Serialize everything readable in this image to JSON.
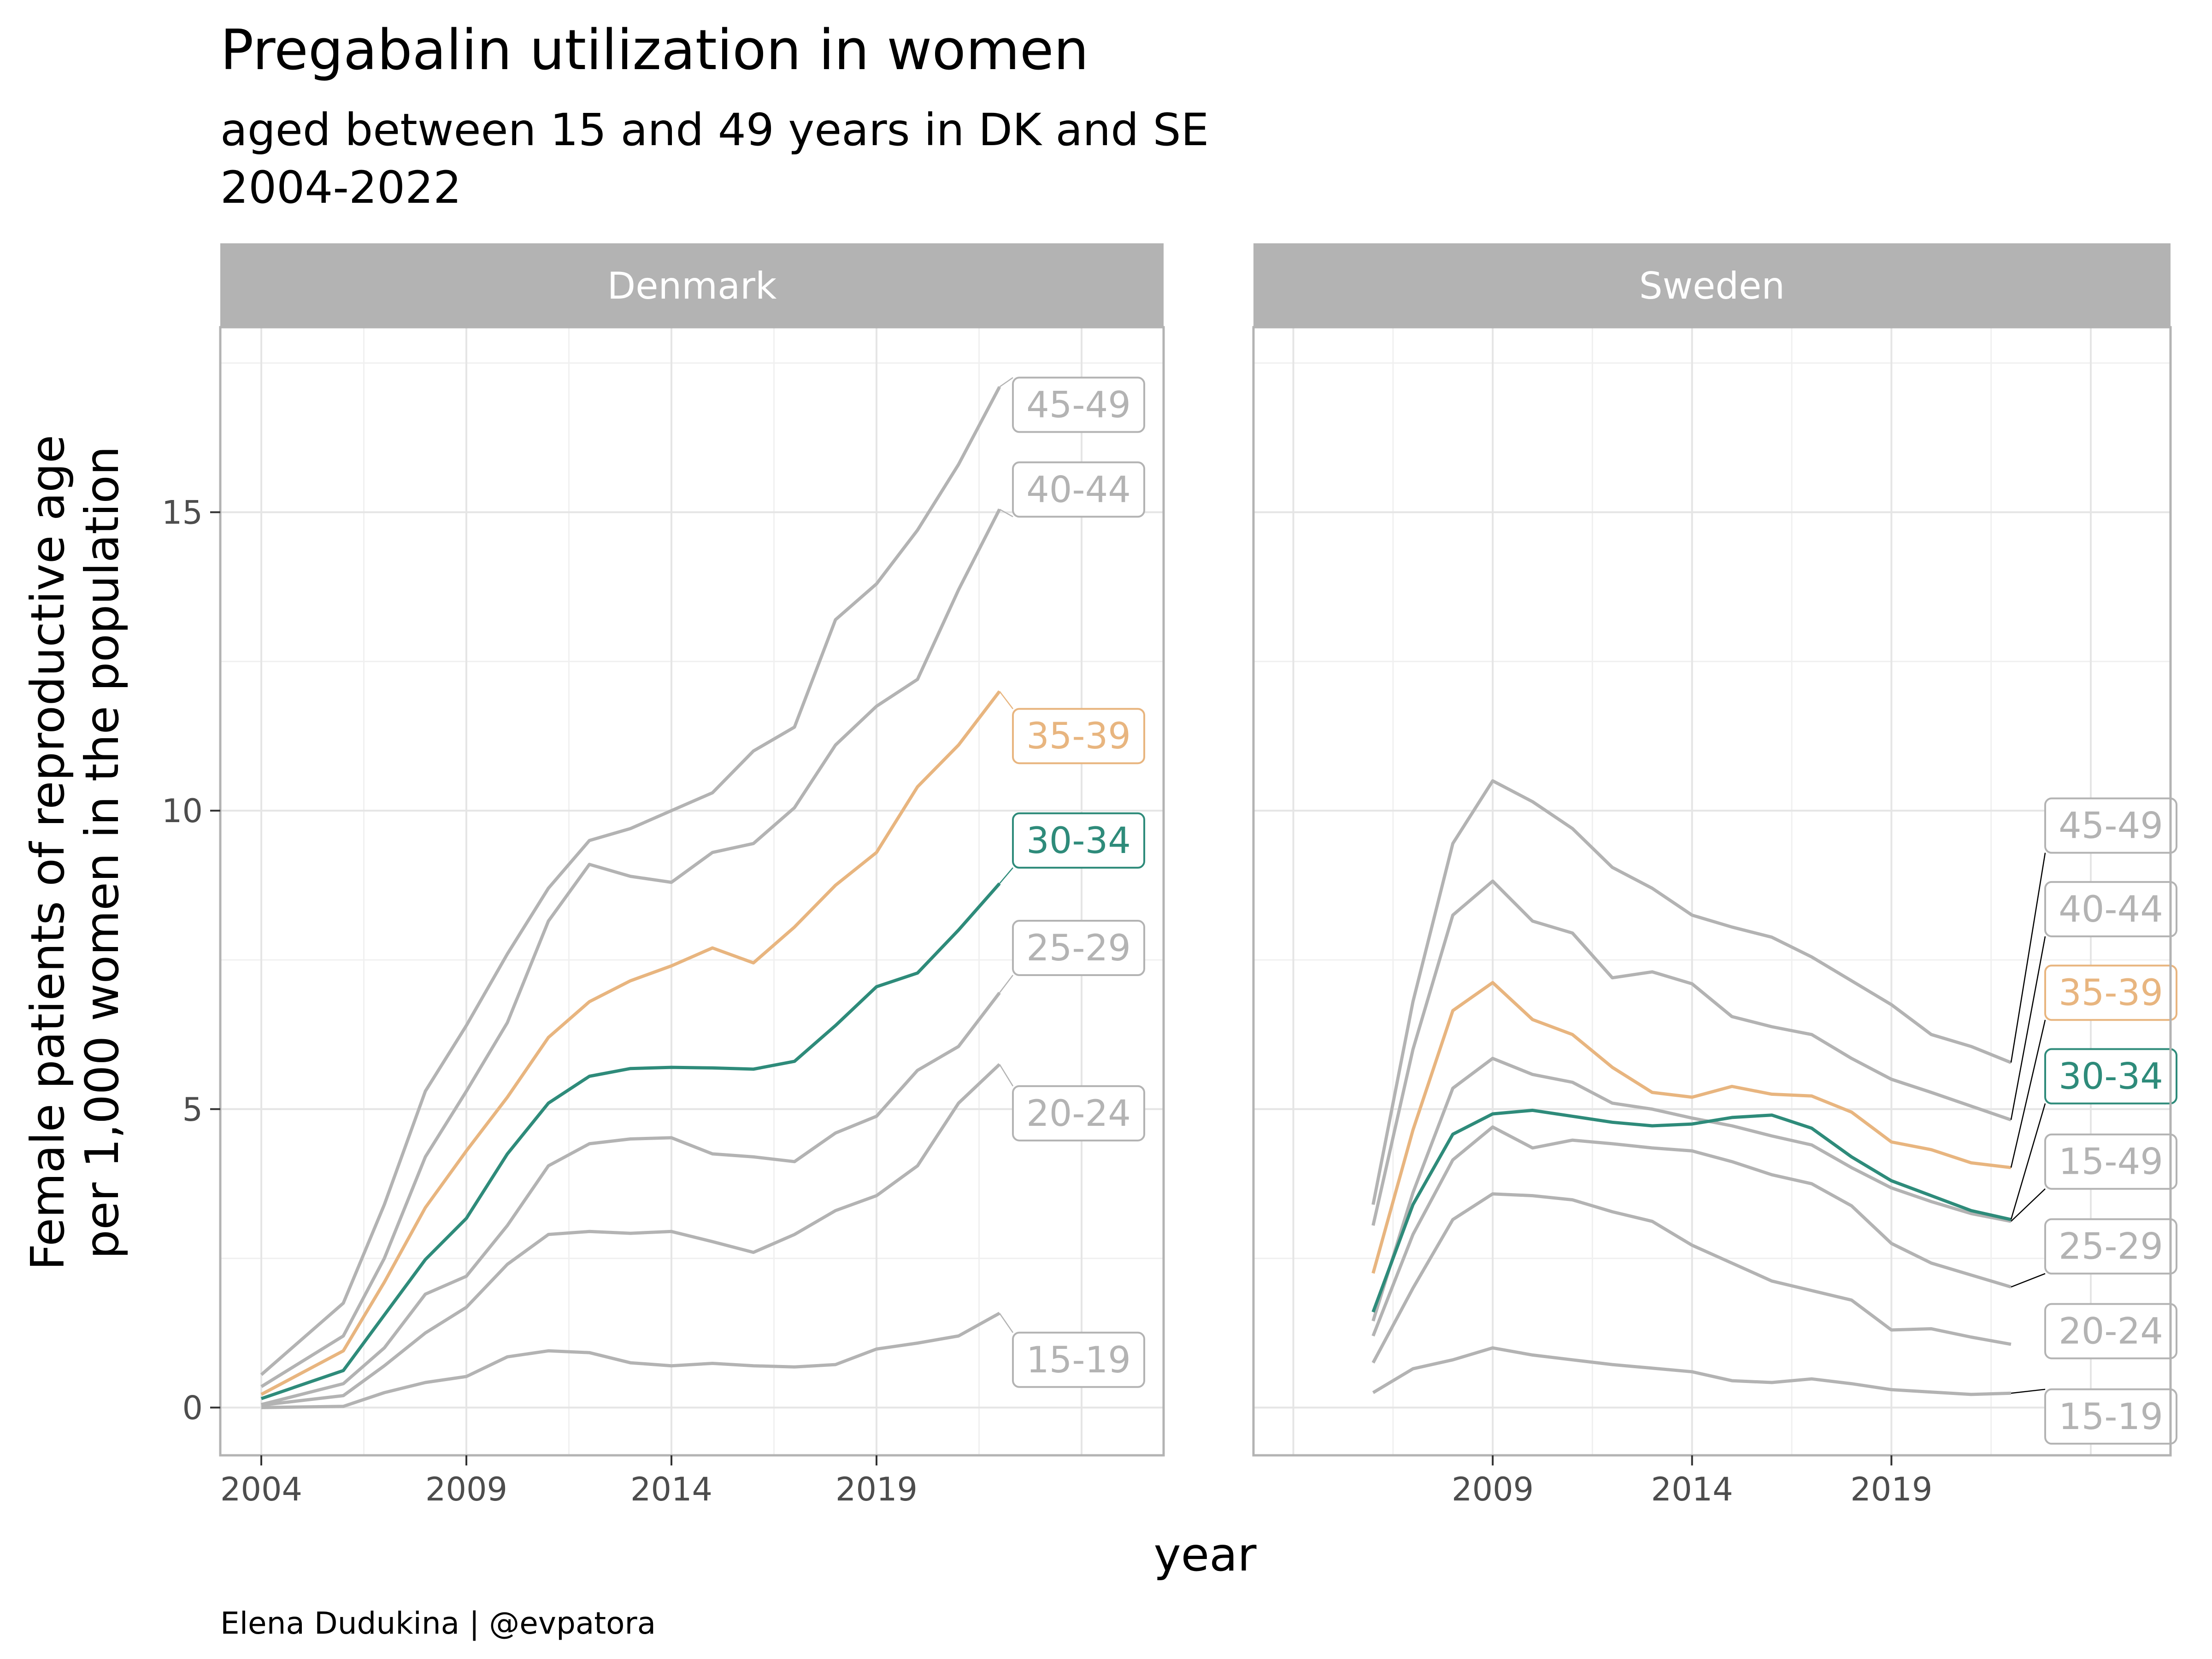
{
  "title": "Pregabalin utilization in women",
  "subtitle_line1": "aged between 15 and 49 years in DK and SE",
  "subtitle_line2": "2004-2022",
  "caption": "Elena Dudukina | @evpatora",
  "xlabel": "year",
  "ylabel_line1": "Female patients of reproductive age",
  "ylabel_line2": "per 1,000 women in the population",
  "colors": {
    "grey": "#b3b3b3",
    "highlight_30_34": "#2e8b7a",
    "highlight_35_39": "#e8b57f",
    "strip": "#b3b3b3",
    "grid": "#e5e5e5",
    "border": "#b3b3b3"
  },
  "chart_data": [
    {
      "type": "line",
      "panel": "Denmark",
      "xticks": [
        2004,
        2009,
        2014,
        2019
      ],
      "yticks": [
        0,
        5,
        10,
        15
      ],
      "xlim": [
        2003,
        2026
      ],
      "ylim": [
        -0.8,
        18.1
      ],
      "series": [
        {
          "name": "45-49",
          "x": [
            2004,
            2006,
            2007,
            2008,
            2009,
            2010,
            2011,
            2012,
            2013,
            2014,
            2015,
            2016,
            2017,
            2018,
            2019,
            2020,
            2021,
            2022
          ],
          "values": [
            0.55,
            1.75,
            3.4,
            5.3,
            6.4,
            7.6,
            8.7,
            9.5,
            9.7,
            10.0,
            10.3,
            11.0,
            11.4,
            13.2,
            13.8,
            14.7,
            15.8,
            17.1
          ]
        },
        {
          "name": "40-44",
          "x": [
            2004,
            2006,
            2007,
            2008,
            2009,
            2010,
            2011,
            2012,
            2013,
            2014,
            2015,
            2016,
            2017,
            2018,
            2019,
            2020,
            2021,
            2022
          ],
          "values": [
            0.35,
            1.2,
            2.5,
            4.2,
            5.3,
            6.45,
            8.15,
            9.1,
            8.9,
            8.8,
            9.3,
            9.45,
            10.05,
            11.1,
            11.75,
            12.2,
            13.7,
            15.05
          ]
        },
        {
          "name": "35-39",
          "x": [
            2004,
            2006,
            2007,
            2008,
            2009,
            2010,
            2011,
            2012,
            2013,
            2014,
            2015,
            2016,
            2017,
            2018,
            2019,
            2020,
            2021,
            2022
          ],
          "values": [
            0.22,
            0.95,
            2.1,
            3.35,
            4.3,
            5.2,
            6.2,
            6.8,
            7.15,
            7.4,
            7.7,
            7.45,
            8.05,
            8.75,
            9.3,
            10.4,
            11.1,
            12.0
          ]
        },
        {
          "name": "30-34",
          "x": [
            2004,
            2006,
            2007,
            2008,
            2009,
            2010,
            2011,
            2012,
            2013,
            2014,
            2015,
            2016,
            2017,
            2018,
            2019,
            2020,
            2021,
            2022
          ],
          "values": [
            0.15,
            0.62,
            1.55,
            2.48,
            3.17,
            4.25,
            5.1,
            5.55,
            5.68,
            5.7,
            5.69,
            5.67,
            5.8,
            6.4,
            7.05,
            7.28,
            8.0,
            8.78
          ]
        },
        {
          "name": "25-29",
          "x": [
            2004,
            2006,
            2007,
            2008,
            2009,
            2010,
            2011,
            2012,
            2013,
            2014,
            2015,
            2016,
            2017,
            2018,
            2019,
            2020,
            2021,
            2022
          ],
          "values": [
            0.05,
            0.4,
            1.0,
            1.9,
            2.2,
            3.05,
            4.05,
            4.42,
            4.5,
            4.52,
            4.25,
            4.2,
            4.12,
            4.6,
            4.88,
            5.65,
            6.05,
            6.95
          ]
        },
        {
          "name": "20-24",
          "x": [
            2004,
            2006,
            2007,
            2008,
            2009,
            2010,
            2011,
            2012,
            2013,
            2014,
            2015,
            2016,
            2017,
            2018,
            2019,
            2020,
            2021,
            2022
          ],
          "values": [
            0.04,
            0.2,
            0.7,
            1.25,
            1.68,
            2.4,
            2.9,
            2.95,
            2.92,
            2.95,
            2.78,
            2.6,
            2.9,
            3.3,
            3.55,
            4.05,
            5.1,
            5.75
          ]
        },
        {
          "name": "15-19",
          "x": [
            2004,
            2006,
            2007,
            2008,
            2009,
            2010,
            2011,
            2012,
            2013,
            2014,
            2015,
            2016,
            2017,
            2018,
            2019,
            2020,
            2021,
            2022
          ],
          "values": [
            0.0,
            0.02,
            0.25,
            0.42,
            0.52,
            0.85,
            0.95,
            0.92,
            0.75,
            0.7,
            0.74,
            0.7,
            0.68,
            0.72,
            0.98,
            1.08,
            1.2,
            1.58
          ]
        }
      ],
      "labels": [
        {
          "text": "45-49",
          "series": "45-49",
          "label_y": 16.8
        },
        {
          "text": "40-44",
          "series": "40-44",
          "label_y": 15.38
        },
        {
          "text": "35-39",
          "series": "35-39",
          "label_y": 11.25
        },
        {
          "text": "30-34",
          "series": "30-34",
          "label_y": 9.5
        },
        {
          "text": "25-29",
          "series": "25-29",
          "label_y": 7.7
        },
        {
          "text": "20-24",
          "series": "20-24",
          "label_y": 4.93
        },
        {
          "text": "15-19",
          "series": "15-19",
          "label_y": 0.8
        }
      ]
    },
    {
      "type": "line",
      "panel": "Sweden",
      "xticks": [
        2009,
        2014,
        2019
      ],
      "yticks": [
        0,
        5,
        10,
        15
      ],
      "xlim": [
        2003,
        2026
      ],
      "ylim": [
        -0.8,
        18.1
      ],
      "series": [
        {
          "name": "45-49",
          "x": [
            2006,
            2007,
            2008,
            2009,
            2010,
            2011,
            2012,
            2013,
            2014,
            2015,
            2016,
            2017,
            2018,
            2019,
            2020,
            2021,
            2022
          ],
          "values": [
            3.4,
            6.8,
            9.45,
            10.5,
            10.15,
            9.7,
            9.05,
            8.7,
            8.25,
            8.05,
            7.88,
            7.55,
            7.15,
            6.75,
            6.25,
            6.05,
            5.78
          ]
        },
        {
          "name": "40-44",
          "x": [
            2006,
            2007,
            2008,
            2009,
            2010,
            2011,
            2012,
            2013,
            2014,
            2015,
            2016,
            2017,
            2018,
            2019,
            2020,
            2021,
            2022
          ],
          "values": [
            3.05,
            6.0,
            8.25,
            8.82,
            8.15,
            7.95,
            7.2,
            7.3,
            7.1,
            6.55,
            6.38,
            6.25,
            5.85,
            5.5,
            5.28,
            5.05,
            4.82
          ]
        },
        {
          "name": "35-39",
          "x": [
            2006,
            2007,
            2008,
            2009,
            2010,
            2011,
            2012,
            2013,
            2014,
            2015,
            2016,
            2017,
            2018,
            2019,
            2020,
            2021,
            2022
          ],
          "values": [
            2.25,
            4.65,
            6.65,
            7.12,
            6.5,
            6.25,
            5.7,
            5.28,
            5.2,
            5.38,
            5.25,
            5.22,
            4.95,
            4.45,
            4.32,
            4.1,
            4.02
          ]
        },
        {
          "name": "30-34",
          "x": [
            2006,
            2007,
            2008,
            2009,
            2010,
            2011,
            2012,
            2013,
            2014,
            2015,
            2016,
            2017,
            2018,
            2019,
            2020,
            2021,
            2022
          ],
          "values": [
            1.6,
            3.4,
            4.58,
            4.92,
            4.98,
            4.88,
            4.78,
            4.72,
            4.75,
            4.86,
            4.9,
            4.68,
            4.2,
            3.8,
            3.55,
            3.3,
            3.15
          ]
        },
        {
          "name": "15-49",
          "x": [
            2006,
            2007,
            2008,
            2009,
            2010,
            2011,
            2012,
            2013,
            2014,
            2015,
            2016,
            2017,
            2018,
            2019,
            2020,
            2021,
            2022
          ],
          "values": [
            1.45,
            3.6,
            5.35,
            5.85,
            5.58,
            5.45,
            5.1,
            5.0,
            4.85,
            4.72,
            4.55,
            4.4,
            4.02,
            3.68,
            3.45,
            3.25,
            3.12
          ]
        },
        {
          "name": "25-29",
          "x": [
            2006,
            2007,
            2008,
            2009,
            2010,
            2011,
            2012,
            2013,
            2014,
            2015,
            2016,
            2017,
            2018,
            2019,
            2020,
            2021,
            2022
          ],
          "values": [
            1.2,
            2.9,
            4.15,
            4.7,
            4.35,
            4.48,
            4.42,
            4.35,
            4.3,
            4.12,
            3.9,
            3.75,
            3.38,
            2.75,
            2.42,
            2.22,
            2.02
          ]
        },
        {
          "name": "20-24",
          "x": [
            2006,
            2007,
            2008,
            2009,
            2010,
            2011,
            2012,
            2013,
            2014,
            2015,
            2016,
            2017,
            2018,
            2019,
            2020,
            2021,
            2022
          ],
          "values": [
            0.75,
            2.0,
            3.15,
            3.58,
            3.55,
            3.48,
            3.28,
            3.12,
            2.72,
            2.42,
            2.12,
            1.96,
            1.8,
            1.3,
            1.32,
            1.18,
            1.06
          ]
        },
        {
          "name": "15-19",
          "x": [
            2006,
            2007,
            2008,
            2009,
            2010,
            2011,
            2012,
            2013,
            2014,
            2015,
            2016,
            2017,
            2018,
            2019,
            2020,
            2021,
            2022
          ],
          "values": [
            0.25,
            0.65,
            0.8,
            1.0,
            0.88,
            0.8,
            0.72,
            0.66,
            0.6,
            0.45,
            0.42,
            0.48,
            0.4,
            0.3,
            0.26,
            0.22,
            0.24
          ]
        }
      ],
      "labels": [
        {
          "text": "45-49",
          "series": "45-49",
          "label_y": 9.75
        },
        {
          "text": "40-44",
          "series": "40-44",
          "label_y": 8.35
        },
        {
          "text": "35-39",
          "series": "35-39",
          "label_y": 6.95
        },
        {
          "text": "30-34",
          "series": "30-34",
          "label_y": 5.55
        },
        {
          "text": "15-49",
          "series": "15-49",
          "label_y": 4.12
        },
        {
          "text": "25-29",
          "series": "25-29",
          "label_y": 2.7
        },
        {
          "text": "20-24",
          "series": "20-24",
          "label_y": 1.28
        },
        {
          "text": "15-19",
          "series": "15-19",
          "label_y": -0.15
        }
      ]
    }
  ],
  "strips": [
    "Denmark",
    "Sweden"
  ]
}
